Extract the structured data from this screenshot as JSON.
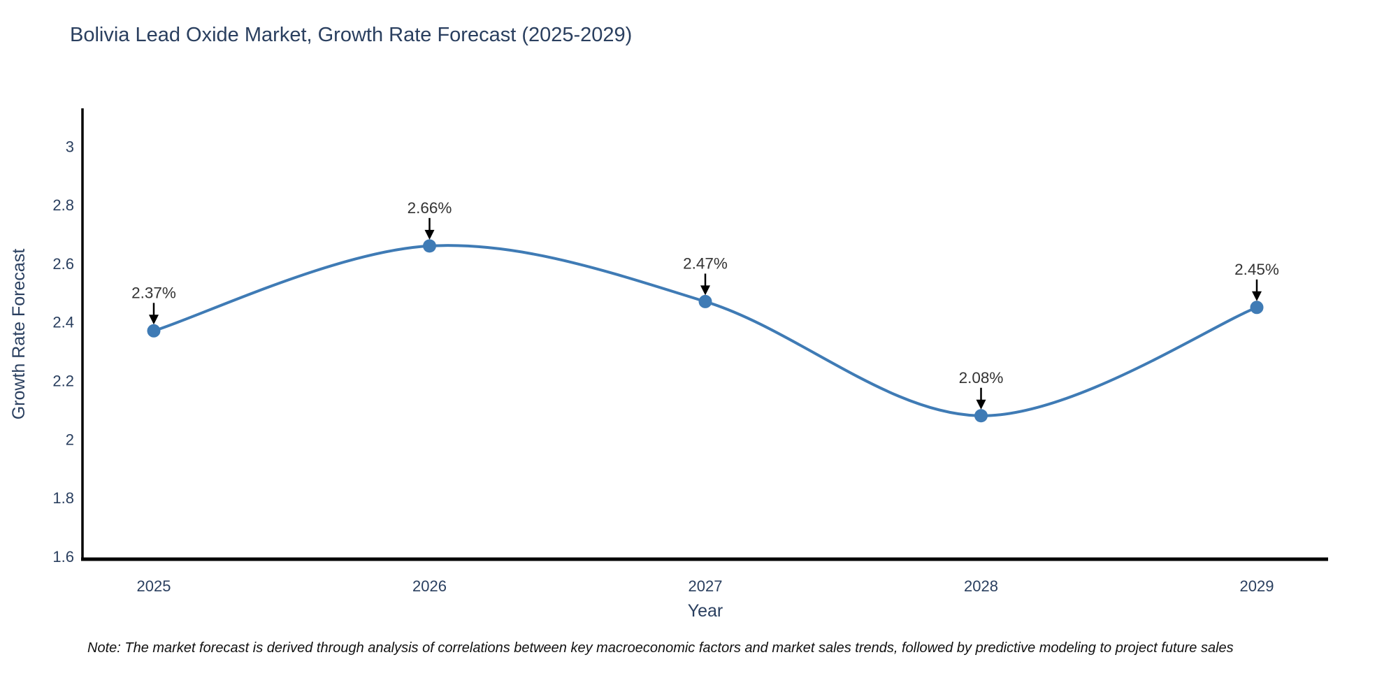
{
  "chart_data": {
    "type": "line",
    "line_shape": "spline",
    "title": "Bolivia Lead Oxide Market, Growth Rate Forecast (2025-2029)",
    "xlabel": "Year",
    "ylabel": "Growth Rate Forecast",
    "categories": [
      "2025",
      "2026",
      "2027",
      "2028",
      "2029"
    ],
    "series": [
      {
        "name": "Growth Rate Forecast",
        "values": [
          2.37,
          2.66,
          2.47,
          2.08,
          2.45
        ]
      }
    ],
    "point_labels": [
      "2.37%",
      "2.66%",
      "2.47%",
      "2.08%",
      "2.45%"
    ],
    "y_ticks": [
      3,
      2.8,
      2.6,
      2.4,
      2.2,
      2,
      1.8,
      1.6
    ],
    "y_tick_labels": [
      "3",
      "2.8",
      "2.6",
      "2.4",
      "2.2",
      "2",
      "1.8",
      "1.6"
    ],
    "ylim": [
      1.59,
      3.13
    ],
    "grid": false,
    "legend_position": "none",
    "colors": {
      "line": "#3f7bb5",
      "marker": "#3f7bb5",
      "arrow": "#000000",
      "axis": "#000000",
      "title_text": "#2a3f5f",
      "tick_text": "#2a3f5f",
      "annotation_text": "#333333"
    }
  },
  "note": {
    "text": "Note: The market forecast is derived through analysis of correlations between key macroeconomic factors and market sales trends, followed by predictive modeling to project future sales"
  }
}
